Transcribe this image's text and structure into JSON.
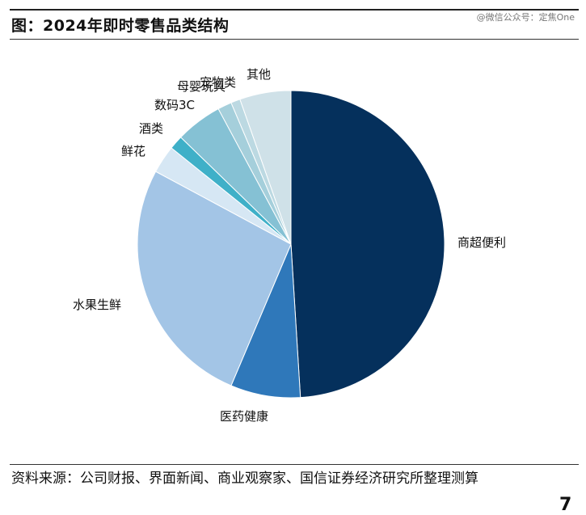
{
  "header": {
    "title": "图：2024年即时零售品类结构",
    "watermark": "@微信公众号：定焦One"
  },
  "chart_data": {
    "type": "pie",
    "title": "图：2024年即时零售品类结构",
    "start_angle_deg": 0,
    "direction": "clockwise",
    "slices": [
      {
        "label": "商超便利",
        "value": 50.0,
        "color": "#05305c"
      },
      {
        "label": "医药健康",
        "value": 7.5,
        "color": "#2f78ba"
      },
      {
        "label": "水果生鲜",
        "value": 27.0,
        "color": "#a3c5e6"
      },
      {
        "label": "鲜花",
        "value": 3.0,
        "color": "#d6e7f4"
      },
      {
        "label": "酒类",
        "value": 1.5,
        "color": "#3fb0c8"
      },
      {
        "label": "数码3C",
        "value": 5.0,
        "color": "#85c1d4"
      },
      {
        "label": "母婴玩具",
        "value": 1.5,
        "color": "#a5cfdb"
      },
      {
        "label": "宠物类",
        "value": 1.0,
        "color": "#bcd9e2"
      },
      {
        "label": "其他",
        "value": 5.5,
        "color": "#cfe1e8"
      }
    ]
  },
  "source": {
    "text": "资料来源：公司财报、界面新闻、商业观察家、国信证券经济研究所整理测算"
  },
  "page": {
    "number": "7"
  }
}
